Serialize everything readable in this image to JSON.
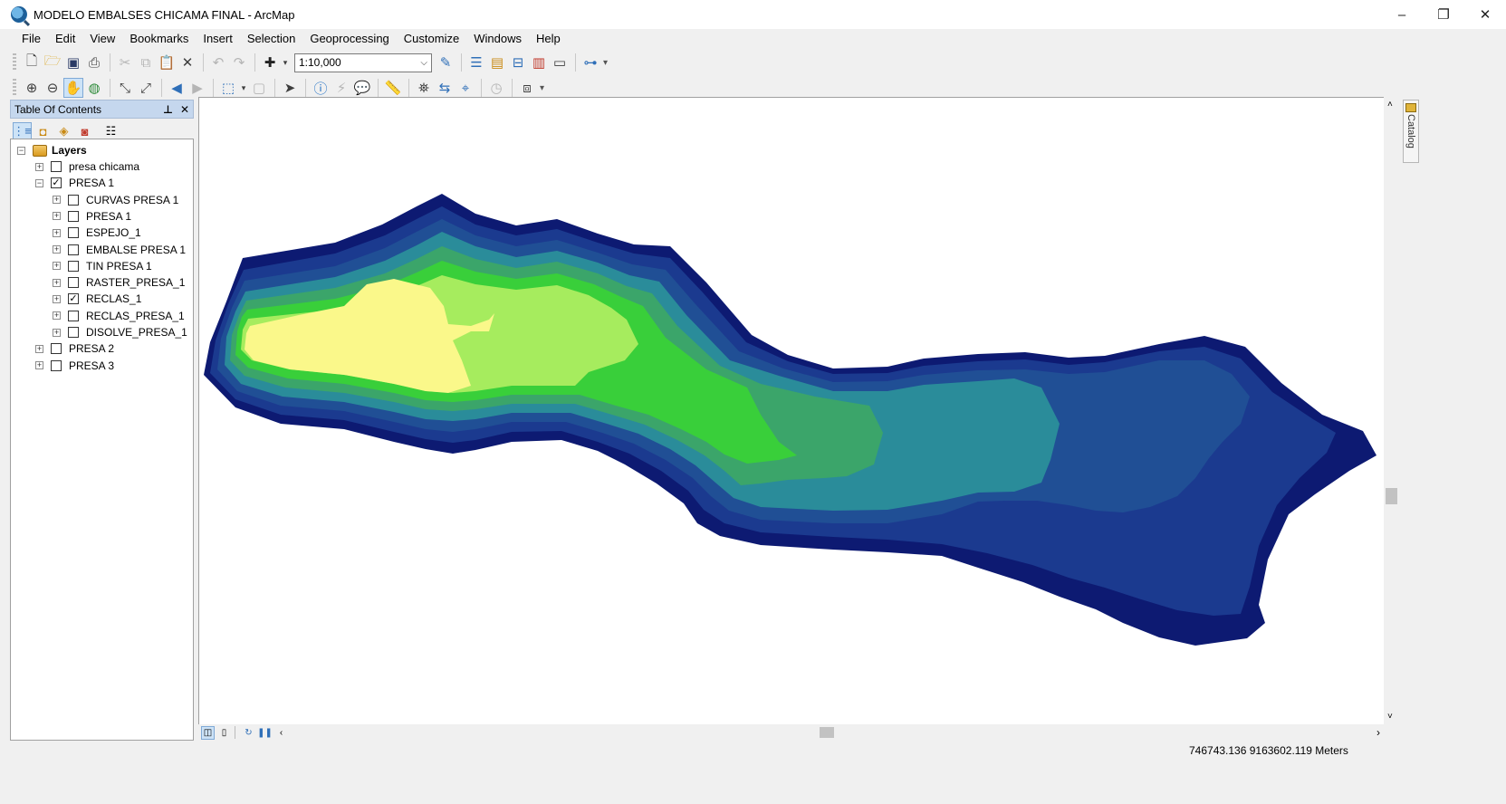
{
  "window": {
    "title": "MODELO EMBALSES CHICAMA FINAL - ArcMap",
    "minimize": "–",
    "restore": "❐",
    "close": "✕"
  },
  "menu": [
    "File",
    "Edit",
    "View",
    "Bookmarks",
    "Insert",
    "Selection",
    "Geoprocessing",
    "Customize",
    "Windows",
    "Help"
  ],
  "toolbar": {
    "scale_value": "1:10,000",
    "scale_dropdown": "⌵"
  },
  "toc": {
    "title": "Table Of Contents",
    "pin": "⊥",
    "close": "✕",
    "root": "Layers",
    "items": [
      {
        "label": "presa chicama",
        "checked": false,
        "expanded": false,
        "level": 1
      },
      {
        "label": "PRESA 1",
        "checked": true,
        "expanded": true,
        "level": 1
      },
      {
        "label": "CURVAS PRESA 1",
        "checked": false,
        "expanded": false,
        "level": 2
      },
      {
        "label": "PRESA 1",
        "checked": false,
        "expanded": false,
        "level": 2
      },
      {
        "label": "ESPEJO_1",
        "checked": false,
        "expanded": false,
        "level": 2
      },
      {
        "label": "EMBALSE PRESA 1",
        "checked": false,
        "expanded": false,
        "level": 2
      },
      {
        "label": "TIN PRESA 1",
        "checked": false,
        "expanded": false,
        "level": 2
      },
      {
        "label": "RASTER_PRESA_1",
        "checked": false,
        "expanded": false,
        "level": 2
      },
      {
        "label": "RECLAS_1",
        "checked": true,
        "expanded": false,
        "level": 2
      },
      {
        "label": "RECLAS_PRESA_1",
        "checked": false,
        "expanded": false,
        "level": 2
      },
      {
        "label": "DISOLVE_PRESA_1",
        "checked": false,
        "expanded": false,
        "level": 2
      },
      {
        "label": "PRESA 2",
        "checked": false,
        "expanded": false,
        "level": 1
      },
      {
        "label": "PRESA 3",
        "checked": false,
        "expanded": false,
        "level": 1
      }
    ]
  },
  "catalog": {
    "label": "Catalog"
  },
  "status": {
    "coordinates": "746743.136  9163602.119 Meters"
  },
  "map_colors": {
    "level_1": "#0d1a72",
    "level_2": "#1b3a8f",
    "level_3": "#204f95",
    "level_4": "#2a8c9a",
    "level_5": "#3ba56a",
    "level_6": "#39cf3a",
    "level_7": "#a6ec5e",
    "level_8": "#faf88a"
  }
}
